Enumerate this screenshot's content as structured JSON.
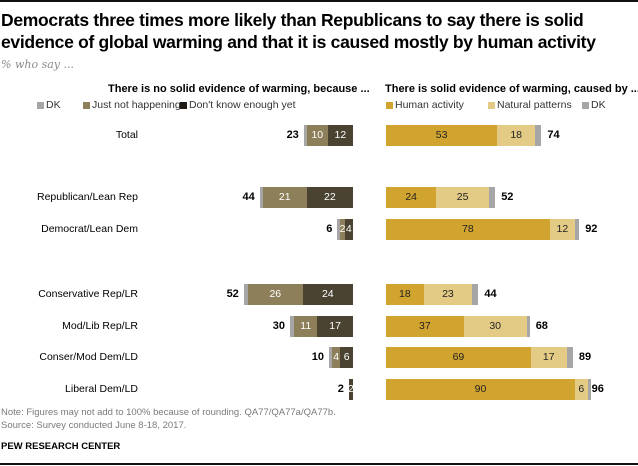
{
  "title": "Democrats three times more likely than Republicans to say there is solid evidence of global warming and that it is caused mostly by human activity",
  "subtitle": "% who say ...",
  "note": "Note: Figures may not add to 100% because of rounding. QA77/QA77a/QA77b.",
  "source": "Source: Survey conducted June 8-18, 2017.",
  "brand": "PEW RESEARCH CENTER",
  "colors": {
    "dk": "#a6a6a6",
    "just_not_happening": "#8c7f5a",
    "dont_know_enough": "#4a4332",
    "human_activity": "#d1a42f",
    "natural_patterns": "#e3cb86"
  },
  "chart_data": [
    {
      "type": "bar",
      "orientation": "horizontal-stacked",
      "direction": "right-to-left",
      "title": "There is no solid evidence of warming, because ...",
      "legend": [
        "DK",
        "Just not happening",
        "Don't know enough yet"
      ],
      "categories": [
        "Total",
        "Republican/Lean Rep",
        "Democrat/Lean Dem",
        "Conservative Rep/LR",
        "Mod/Lib Rep/LR",
        "Conser/Mod Dem/LD",
        "Liberal Dem/LD"
      ],
      "series": [
        {
          "name": "Don't know enough yet",
          "values": [
            12,
            22,
            4,
            24,
            17,
            6,
            2
          ]
        },
        {
          "name": "Just not happening",
          "values": [
            10,
            21,
            2,
            26,
            11,
            4,
            0
          ]
        },
        {
          "name": "DK",
          "values": [
            1,
            1,
            0,
            2,
            2,
            0,
            0
          ]
        }
      ],
      "net_totals": [
        23,
        44,
        6,
        52,
        30,
        10,
        2
      ],
      "segment_labels": [
        [
          "12",
          "10"
        ],
        [
          "22",
          "21"
        ],
        [
          "4",
          "2"
        ],
        [
          "24",
          "26"
        ],
        [
          "17",
          "11"
        ],
        [
          "6",
          "4"
        ],
        [
          "2",
          ""
        ]
      ]
    },
    {
      "type": "bar",
      "orientation": "horizontal-stacked",
      "direction": "left-to-right",
      "title": "There is solid evidence of warming, caused by ...",
      "legend": [
        "Human activity",
        "Natural patterns",
        "DK"
      ],
      "categories": [
        "Total",
        "Republican/Lean Rep",
        "Democrat/Lean Dem",
        "Conservative Rep/LR",
        "Mod/Lib Rep/LR",
        "Conser/Mod Dem/LD",
        "Liberal Dem/LD"
      ],
      "series": [
        {
          "name": "Human activity",
          "values": [
            53,
            24,
            78,
            18,
            37,
            69,
            90
          ]
        },
        {
          "name": "Natural patterns",
          "values": [
            18,
            25,
            12,
            23,
            30,
            17,
            6
          ]
        },
        {
          "name": "DK",
          "values": [
            3,
            3,
            2,
            3,
            1,
            3,
            0
          ]
        }
      ],
      "net_totals": [
        74,
        52,
        92,
        44,
        68,
        89,
        96
      ]
    }
  ]
}
